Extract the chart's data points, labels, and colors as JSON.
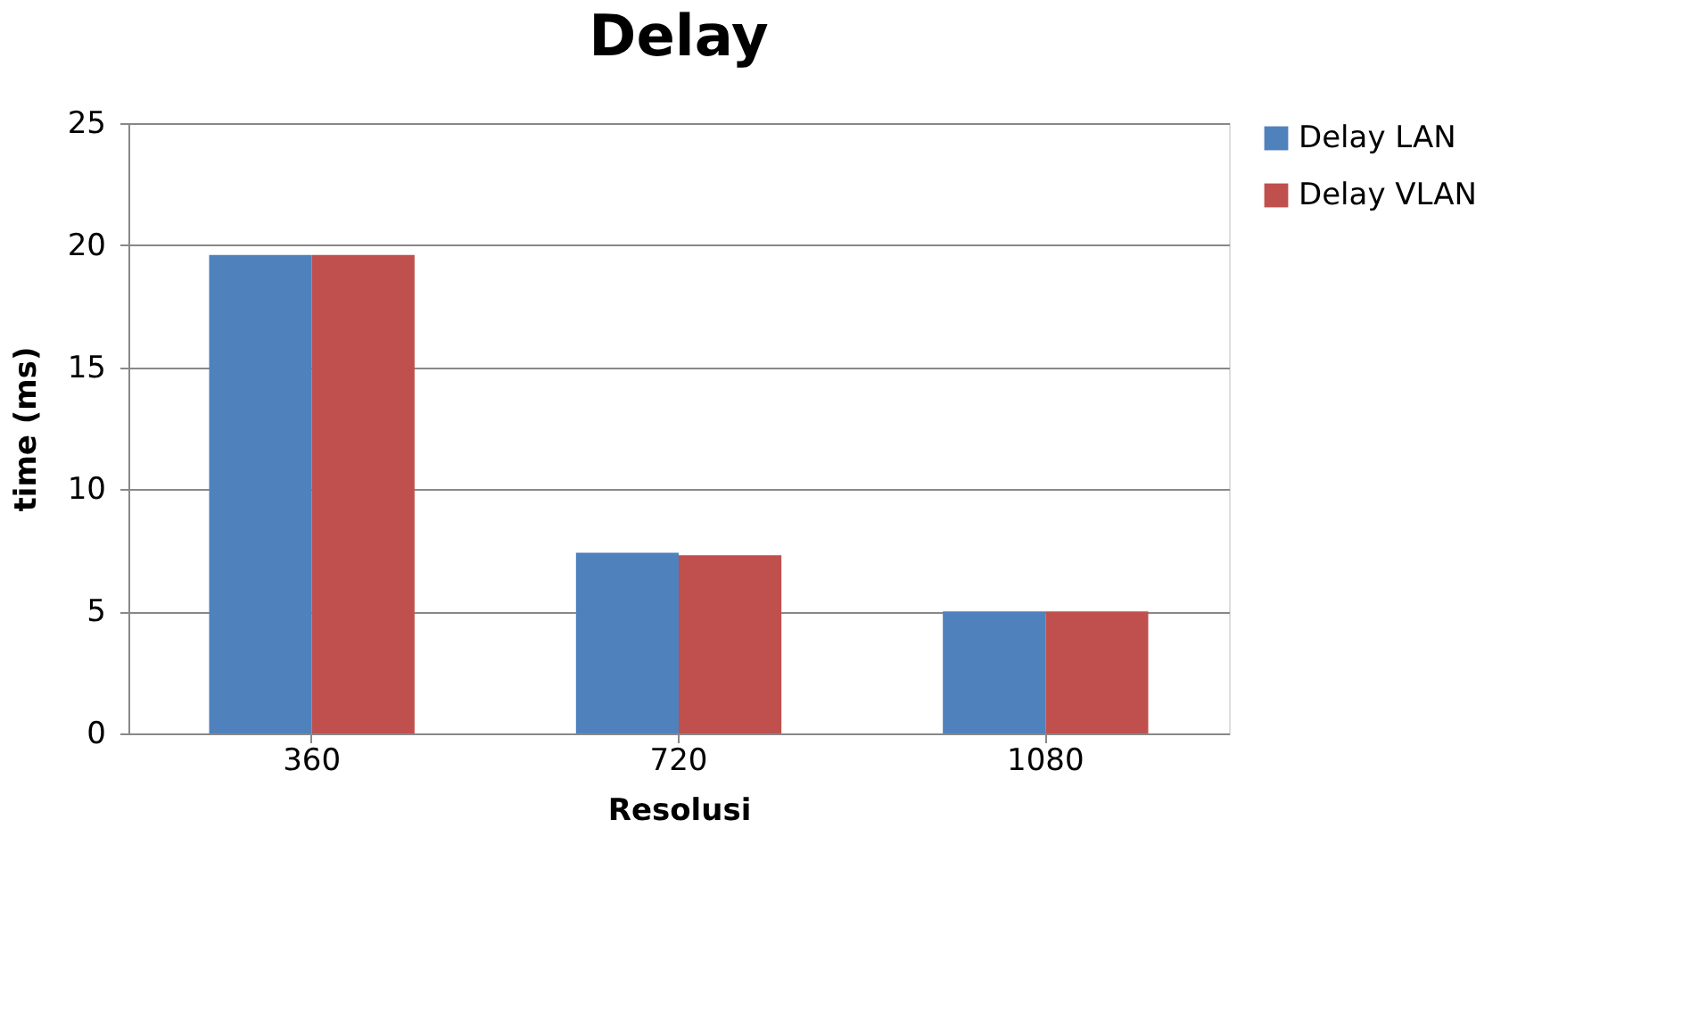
{
  "chart_data": {
    "type": "bar",
    "title": "Delay",
    "xlabel": "Resolusi",
    "ylabel": "time (ms)",
    "categories": [
      "360",
      "720",
      "1080"
    ],
    "series": [
      {
        "name": "Delay LAN",
        "color": "#4f81bd",
        "values": [
          19.6,
          7.4,
          5.0
        ]
      },
      {
        "name": "Delay VLAN",
        "color": "#c0504d",
        "values": [
          19.6,
          7.3,
          5.0
        ]
      }
    ],
    "ylim": [
      0,
      25
    ],
    "yticks": [
      0,
      5,
      10,
      15,
      20,
      25
    ],
    "grid": "y",
    "legend": "right"
  }
}
